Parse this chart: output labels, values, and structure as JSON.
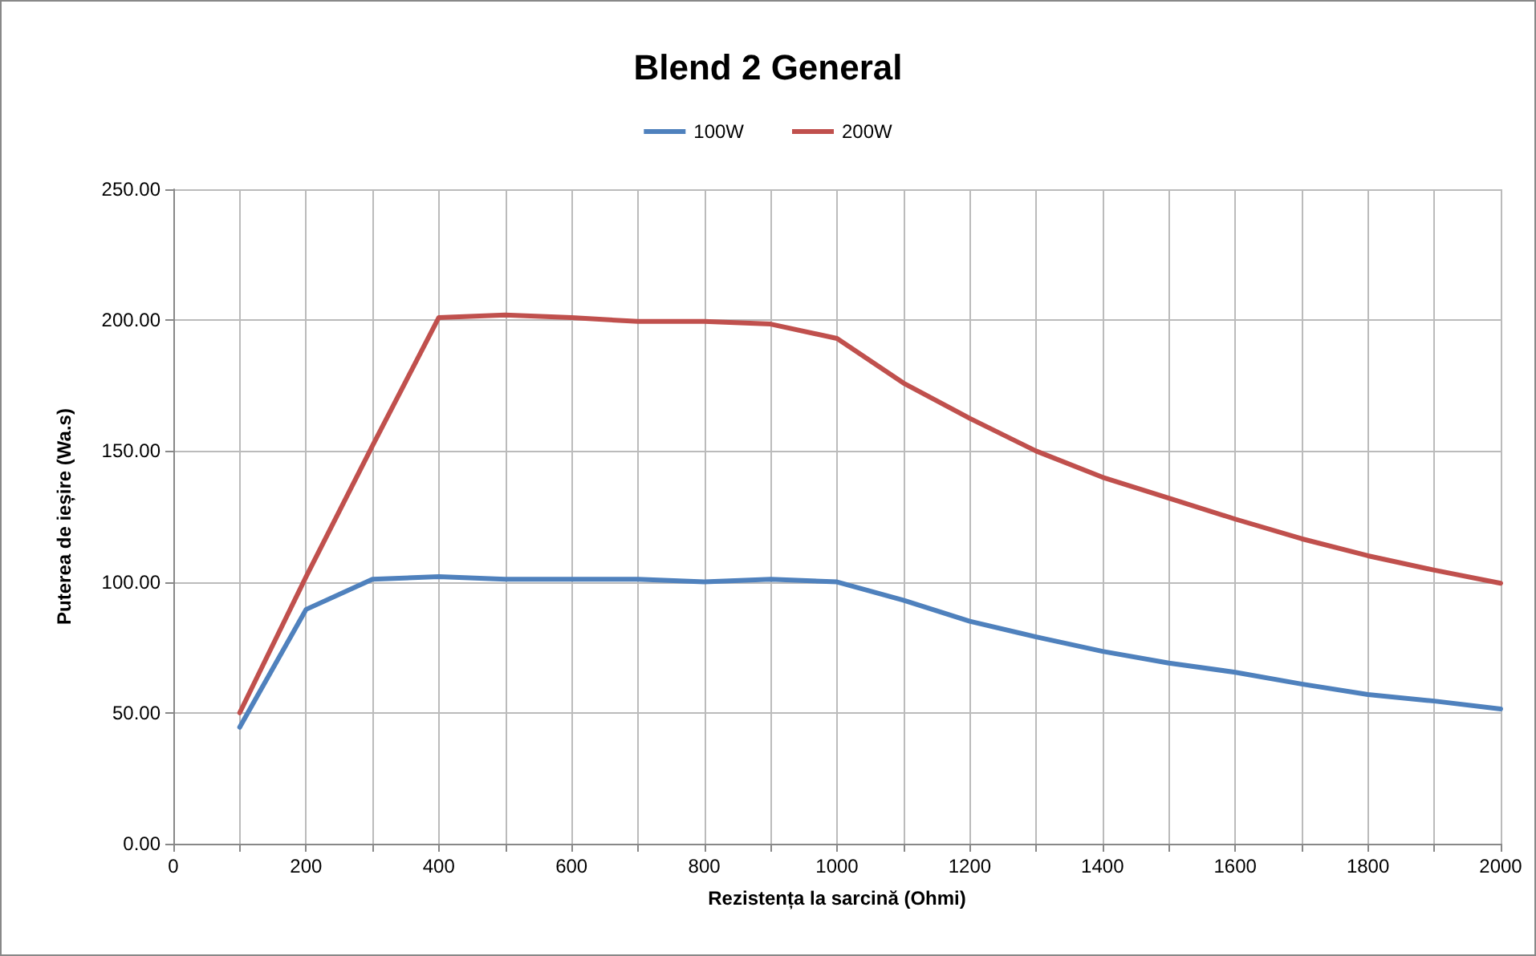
{
  "chart_data": {
    "type": "line",
    "title": "Blend 2 General",
    "xlabel": "Rezistența la sarcină (Ohmi)",
    "ylabel": "Puterea de ieșire (Wa.s)",
    "x": [
      100,
      200,
      300,
      400,
      500,
      600,
      700,
      800,
      900,
      1000,
      1100,
      1200,
      1300,
      1400,
      1500,
      1600,
      1700,
      1800,
      1900,
      2000
    ],
    "series": [
      {
        "name": "100W",
        "color": "#4f81bd",
        "values": [
          44.5,
          89.5,
          101,
          102,
          101,
          101,
          101,
          100,
          101,
          100,
          93,
          85,
          79,
          73.5,
          69,
          65.5,
          61,
          57,
          54.5,
          51.5
        ]
      },
      {
        "name": "200W",
        "color": "#c0504d",
        "values": [
          50,
          102,
          152,
          201,
          202,
          201,
          199.5,
          199.5,
          198.5,
          193,
          176,
          162.5,
          150,
          140,
          132,
          124,
          116.5,
          110,
          104.5,
          99.5
        ]
      }
    ],
    "xlim": [
      0,
      2000
    ],
    "xticks": [
      0,
      {
        "value": 100,
        "label": null
      },
      200,
      {
        "value": 300,
        "label": null
      },
      400,
      {
        "value": 500,
        "label": null
      },
      600,
      {
        "value": 700,
        "label": null
      },
      800,
      {
        "value": 900,
        "label": null
      },
      1000,
      {
        "value": 1100,
        "label": null
      },
      1200,
      {
        "value": 1300,
        "label": null
      },
      1400,
      {
        "value": 1500,
        "label": null
      },
      1600,
      {
        "value": 1700,
        "label": null
      },
      1800,
      {
        "value": 1900,
        "label": null
      },
      2000
    ],
    "ylim": [
      0,
      250
    ],
    "yticks": [
      {
        "value": 0,
        "label": "0.00"
      },
      {
        "value": 50,
        "label": "50.00"
      },
      {
        "value": 100,
        "label": "100.00"
      },
      {
        "value": 150,
        "label": "150.00"
      },
      {
        "value": 200,
        "label": "200.00"
      },
      {
        "value": 250,
        "label": "250.00"
      }
    ],
    "grid": true,
    "legend": "top",
    "marker": "none",
    "line_style": "solid"
  }
}
